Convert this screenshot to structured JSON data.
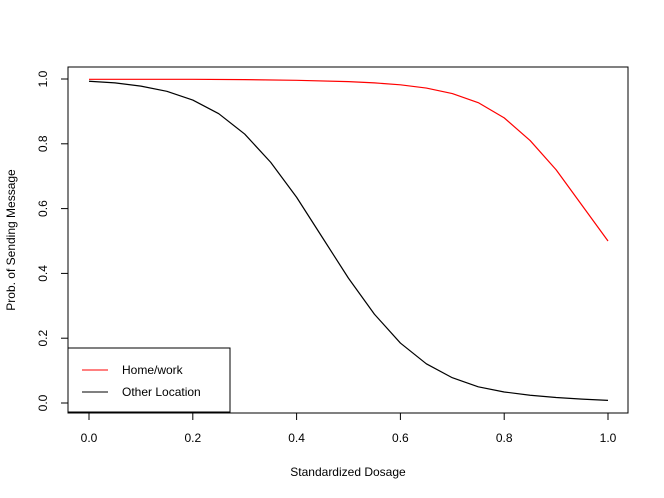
{
  "chart_data": {
    "type": "line",
    "title": "",
    "xlabel": "Standardized Dosage",
    "ylabel": "Prob. of Sending Message",
    "xlim": [
      0,
      1
    ],
    "ylim": [
      0,
      1
    ],
    "x_ticks": [
      "0.0",
      "0.2",
      "0.4",
      "0.6",
      "0.8",
      "1.0"
    ],
    "y_ticks": [
      "0.0",
      "0.2",
      "0.4",
      "0.6",
      "0.8",
      "1.0"
    ],
    "grid": false,
    "legend_position": "bottom-left",
    "series": [
      {
        "name": "Home/work",
        "color": "#ff0000",
        "x": [
          0.0,
          0.1,
          0.2,
          0.3,
          0.4,
          0.5,
          0.55,
          0.6,
          0.65,
          0.7,
          0.75,
          0.8,
          0.85,
          0.9,
          0.95,
          1.0
        ],
        "y": [
          0.999,
          0.999,
          0.999,
          0.998,
          0.996,
          0.992,
          0.988,
          0.982,
          0.972,
          0.955,
          0.927,
          0.88,
          0.81,
          0.72,
          0.61,
          0.5
        ]
      },
      {
        "name": "Other Location",
        "color": "#000000",
        "x": [
          0.0,
          0.05,
          0.1,
          0.15,
          0.2,
          0.25,
          0.3,
          0.35,
          0.4,
          0.45,
          0.5,
          0.55,
          0.6,
          0.65,
          0.7,
          0.75,
          0.8,
          0.85,
          0.9,
          0.95,
          1.0
        ],
        "y": [
          0.993,
          0.988,
          0.978,
          0.962,
          0.935,
          0.893,
          0.83,
          0.743,
          0.635,
          0.51,
          0.385,
          0.274,
          0.185,
          0.121,
          0.078,
          0.05,
          0.034,
          0.024,
          0.017,
          0.012,
          0.008
        ]
      }
    ]
  }
}
